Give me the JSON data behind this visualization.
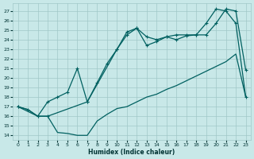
{
  "xlabel": "Humidex (Indice chaleur)",
  "bg_color": "#c8e8e8",
  "grid_color": "#a0c8c8",
  "line_color": "#006060",
  "xlim": [
    -0.5,
    23.5
  ],
  "ylim": [
    13.5,
    27.8
  ],
  "xticks": [
    0,
    1,
    2,
    3,
    4,
    5,
    6,
    7,
    8,
    9,
    10,
    11,
    12,
    13,
    14,
    15,
    16,
    17,
    18,
    19,
    20,
    21,
    22,
    23
  ],
  "yticks": [
    14,
    15,
    16,
    17,
    18,
    19,
    20,
    21,
    22,
    23,
    24,
    25,
    26,
    27
  ],
  "line_min_x": [
    0,
    1,
    2,
    3,
    4,
    5,
    6,
    7,
    8,
    9,
    10,
    11,
    12,
    13,
    14,
    15,
    16,
    17,
    18,
    19,
    20,
    21,
    22,
    23
  ],
  "line_min_y": [
    17.0,
    16.7,
    16.0,
    16.0,
    14.3,
    14.2,
    14.0,
    14.0,
    15.5,
    16.2,
    16.8,
    17.0,
    17.5,
    18.0,
    18.3,
    18.8,
    19.2,
    19.7,
    20.2,
    20.7,
    21.2,
    21.7,
    22.5,
    18.0
  ],
  "line_max_x": [
    0,
    1,
    2,
    3,
    4,
    5,
    6,
    7,
    8,
    9,
    10,
    11,
    12,
    13,
    14,
    15,
    16,
    17,
    18,
    19,
    20,
    21,
    22,
    23
  ],
  "line_max_y": [
    17.0,
    16.7,
    16.0,
    17.5,
    18.0,
    18.5,
    21.0,
    17.5,
    19.5,
    21.5,
    23.0,
    24.8,
    25.2,
    24.3,
    24.0,
    24.3,
    24.5,
    24.5,
    24.5,
    25.7,
    27.2,
    27.0,
    25.7,
    18.0
  ],
  "line_mid_x": [
    0,
    2,
    3,
    7,
    10,
    11,
    12,
    13,
    14,
    15,
    16,
    17,
    18,
    19,
    20,
    21,
    22,
    23
  ],
  "line_mid_y": [
    17.0,
    16.0,
    16.0,
    17.5,
    23.0,
    24.5,
    25.2,
    23.4,
    23.8,
    24.3,
    24.0,
    24.4,
    24.5,
    24.5,
    25.7,
    27.2,
    27.0,
    20.8
  ]
}
